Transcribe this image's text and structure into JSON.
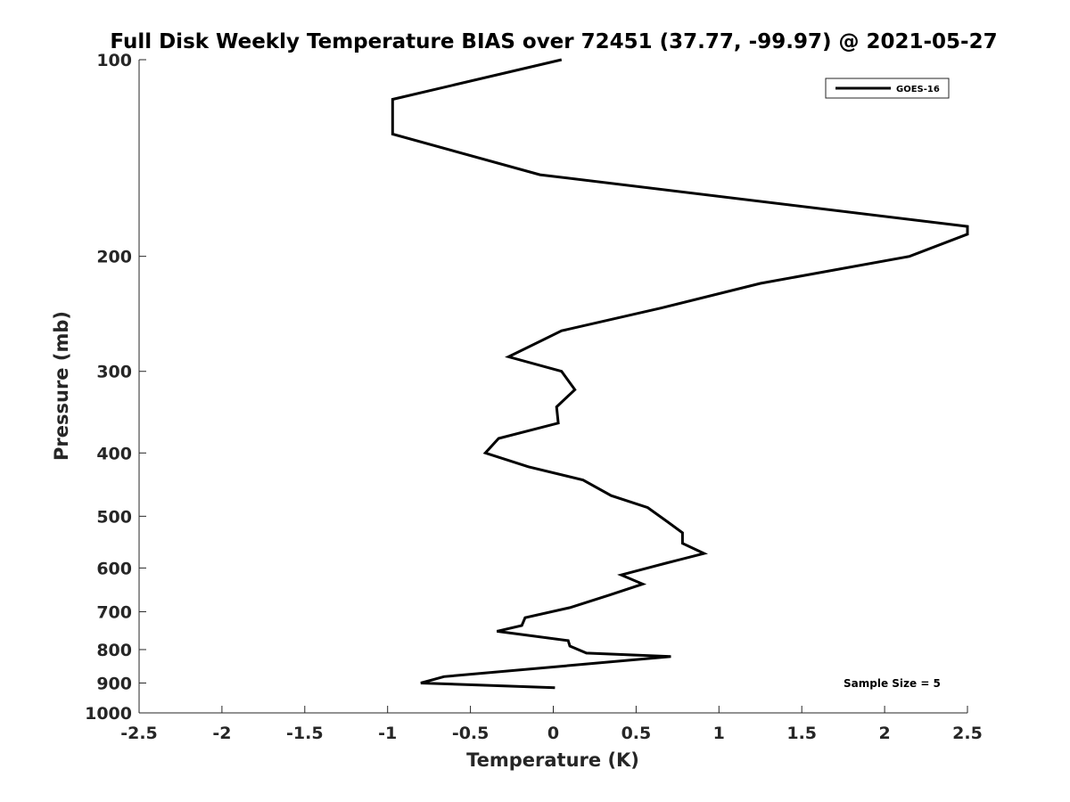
{
  "chart_data": {
    "type": "line",
    "title": "Full Disk Weekly Temperature BIAS over 72451 (37.77, -99.97) @ 2021-05-27",
    "xlabel": "Temperature (K)",
    "ylabel": "Pressure (mb)",
    "xlim": [
      -2.5,
      2.5
    ],
    "ylim": [
      100,
      1000
    ],
    "y_scale": "log",
    "y_reversed": true,
    "xticks": [
      "-2.5",
      "-2",
      "-1.5",
      "-1",
      "-0.5",
      "0",
      "0.5",
      "1",
      "1.5",
      "2",
      "2.5"
    ],
    "xtick_values": [
      -2.5,
      -2,
      -1.5,
      -1,
      -0.5,
      0,
      0.5,
      1,
      1.5,
      2,
      2.5
    ],
    "yticks": [
      "100",
      "200",
      "300",
      "400",
      "500",
      "600",
      "700",
      "800",
      "900",
      "1000"
    ],
    "ytick_values": [
      100,
      200,
      300,
      400,
      500,
      600,
      700,
      800,
      900,
      1000
    ],
    "grid": false,
    "legend_position": "top-right",
    "annotation": "Sample Size = 5",
    "series": [
      {
        "name": "GOES-16",
        "color": "#000000",
        "x": [
          0.05,
          -0.97,
          -0.97,
          -0.08,
          2.5,
          2.5,
          2.15,
          1.25,
          0.65,
          0.05,
          -0.27,
          0.05,
          0.13,
          0.02,
          0.03,
          -0.33,
          -0.41,
          -0.15,
          0.18,
          0.35,
          0.57,
          0.69,
          0.78,
          0.78,
          0.91,
          0.68,
          0.41,
          0.54,
          0.34,
          0.1,
          -0.17,
          -0.19,
          -0.34,
          0.09,
          0.1,
          0.2,
          0.71,
          -0.66,
          -0.8,
          0.01
        ],
        "y": [
          100,
          115,
          130,
          150,
          180,
          185,
          200,
          220,
          240,
          260,
          285,
          300,
          320,
          340,
          360,
          380,
          400,
          420,
          440,
          465,
          485,
          510,
          530,
          550,
          570,
          590,
          615,
          635,
          660,
          690,
          715,
          735,
          750,
          775,
          790,
          810,
          820,
          880,
          900,
          915
        ]
      }
    ]
  }
}
